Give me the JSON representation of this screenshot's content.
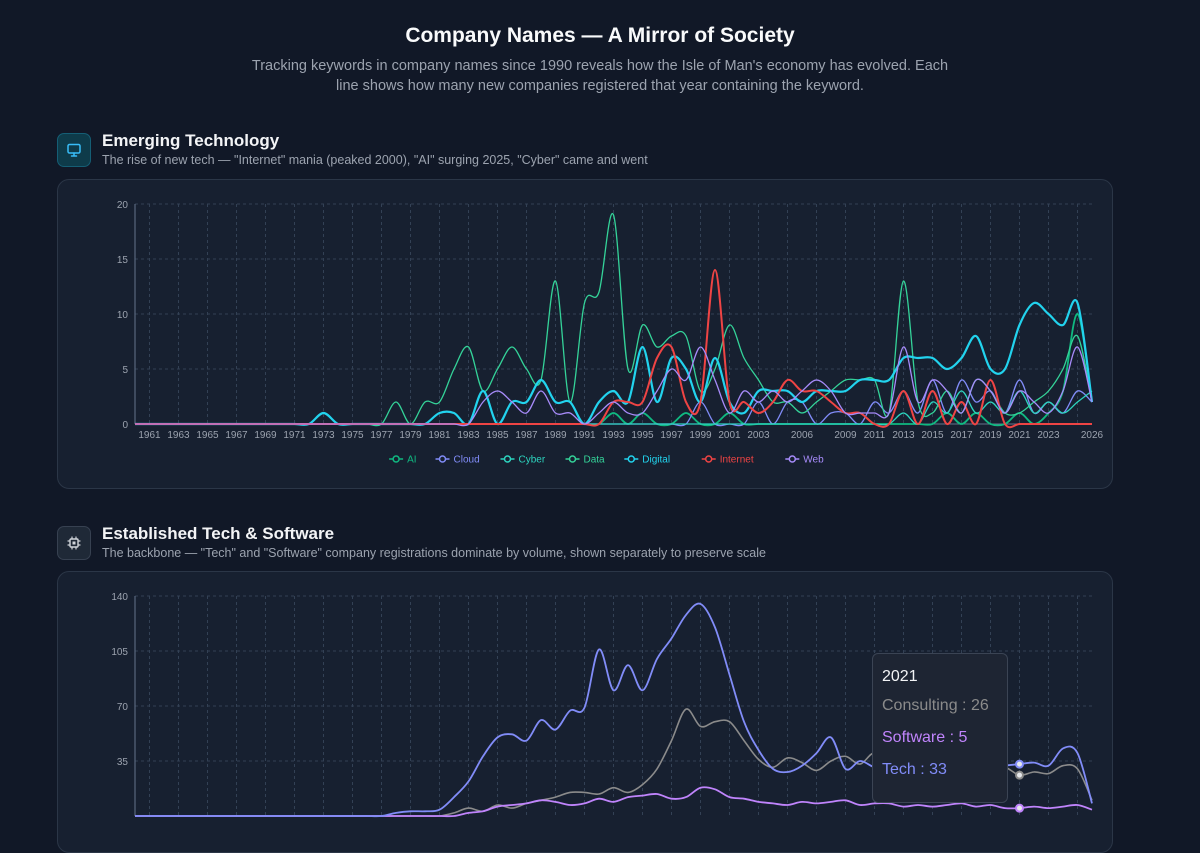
{
  "header": {
    "title": "Company Names — A Mirror of Society",
    "description": "Tracking keywords in company names since 1990 reveals how the Isle of Man's economy has evolved. Each line shows how many new companies registered that year containing the keyword."
  },
  "sections": [
    {
      "title": "Emerging Technology",
      "subtitle": "The rise of new tech — \"Internet\" mania (peaked 2000), \"AI\" surging 2025, \"Cyber\" came and went",
      "icon": "monitor-icon"
    },
    {
      "title": "Established Tech & Software",
      "subtitle": "The backbone — \"Tech\" and \"Software\" company registrations dominate by volume, shown separately to preserve scale",
      "icon": "chip-icon"
    }
  ],
  "tooltip": {
    "year": "2021",
    "rows": [
      {
        "label": "Consulting : 26",
        "color": "#8b8b8b"
      },
      {
        "label": "Software : 5",
        "color": "#c084fc"
      },
      {
        "label": "Tech : 33",
        "color": "#818cf8"
      }
    ]
  },
  "chart_data": [
    {
      "type": "line",
      "ylim": [
        0,
        20
      ],
      "yticks": [
        0,
        5,
        10,
        15,
        20
      ],
      "x": [
        1960,
        1961,
        1962,
        1963,
        1964,
        1965,
        1966,
        1967,
        1968,
        1969,
        1970,
        1971,
        1972,
        1973,
        1974,
        1975,
        1976,
        1977,
        1978,
        1979,
        1980,
        1981,
        1982,
        1983,
        1984,
        1985,
        1986,
        1987,
        1988,
        1989,
        1990,
        1991,
        1992,
        1993,
        1994,
        1995,
        1996,
        1997,
        1998,
        1999,
        2000,
        2001,
        2002,
        2003,
        2004,
        2005,
        2006,
        2007,
        2008,
        2009,
        2010,
        2011,
        2012,
        2013,
        2014,
        2015,
        2016,
        2017,
        2018,
        2019,
        2020,
        2021,
        2022,
        2023,
        2024,
        2025,
        2026
      ],
      "xticks": [
        "1961",
        "1963",
        "1965",
        "1967",
        "1969",
        "1971",
        "1973",
        "1975",
        "1977",
        "1979",
        "1981",
        "1983",
        "1985",
        "1987",
        "1989",
        "1991",
        "1993",
        "1995",
        "1997",
        "1999",
        "2001",
        "2003",
        "2006",
        "2009",
        "2011",
        "2013",
        "2015",
        "2017",
        "2019",
        "2021",
        "2023",
        "2026"
      ],
      "grid": true,
      "legend_position": "bottom",
      "series": [
        {
          "name": "AI",
          "color": "#10b981",
          "values": [
            0,
            0,
            0,
            0,
            0,
            0,
            0,
            0,
            0,
            0,
            0,
            0,
            0,
            0,
            0,
            0,
            0,
            0,
            0,
            0,
            0,
            0,
            0,
            0,
            0,
            0,
            0,
            0,
            0,
            0,
            0,
            0,
            0,
            1,
            0,
            1,
            0,
            0,
            1,
            0,
            0,
            1,
            0,
            0,
            0,
            0,
            0,
            0,
            0,
            0,
            0,
            0,
            0,
            0,
            0,
            0,
            1,
            0,
            1,
            0,
            0,
            1,
            0,
            1,
            3,
            10,
            2
          ]
        },
        {
          "name": "Cloud",
          "color": "#818cf8",
          "values": [
            0,
            0,
            0,
            0,
            0,
            0,
            0,
            0,
            0,
            0,
            0,
            0,
            0,
            0,
            0,
            0,
            0,
            0,
            0,
            0,
            0,
            0,
            0,
            0,
            0,
            0,
            0,
            0,
            0,
            0,
            0,
            0,
            0,
            0,
            0,
            0,
            0,
            0,
            0,
            2,
            0,
            0,
            0,
            2,
            0,
            2,
            2,
            0,
            1,
            1,
            0,
            2,
            1,
            3,
            1,
            4,
            1,
            4,
            2,
            3,
            1,
            4,
            1,
            2,
            1,
            3,
            2
          ]
        },
        {
          "name": "Cyber",
          "color": "#2dd4bf",
          "values": [
            0,
            0,
            0,
            0,
            0,
            0,
            0,
            0,
            0,
            0,
            0,
            0,
            0,
            0,
            0,
            0,
            0,
            0,
            0,
            0,
            0,
            0,
            0,
            0,
            0,
            0,
            0,
            0,
            0,
            0,
            0,
            0,
            0,
            0,
            0,
            0,
            0,
            0,
            0,
            0,
            0,
            0,
            0,
            0,
            0,
            0,
            0,
            0,
            0,
            0,
            0,
            0,
            0,
            1,
            0,
            2,
            1,
            3,
            1,
            2,
            1,
            3,
            1,
            2,
            1,
            2,
            3
          ]
        },
        {
          "name": "Data",
          "color": "#34d399",
          "values": [
            0,
            0,
            0,
            0,
            0,
            0,
            0,
            0,
            0,
            0,
            0,
            0,
            0,
            0,
            0,
            0,
            0,
            0,
            2,
            0,
            2,
            2,
            5,
            7,
            3,
            5,
            7,
            5,
            4,
            13,
            2,
            11,
            12,
            19,
            5,
            9,
            7,
            8,
            8,
            3,
            5,
            9,
            6,
            4,
            2,
            2,
            1,
            2,
            3,
            4,
            4,
            4,
            1,
            13,
            2,
            1,
            3,
            1,
            4,
            3,
            1,
            1,
            2,
            3,
            5,
            8,
            2
          ]
        },
        {
          "name": "Digital",
          "color": "#22d3ee",
          "values": [
            0,
            0,
            0,
            0,
            0,
            0,
            0,
            0,
            0,
            0,
            0,
            0,
            0,
            1,
            0,
            0,
            0,
            0,
            0,
            0,
            0,
            1,
            1,
            0,
            3,
            0,
            2,
            2,
            4,
            2,
            2,
            0,
            2,
            3,
            2,
            7,
            2,
            6,
            5,
            2,
            6,
            2,
            1,
            3,
            3,
            3,
            2,
            3,
            3,
            3,
            4,
            4,
            4,
            6,
            6,
            6,
            5,
            6,
            8,
            5,
            5,
            9,
            11,
            10,
            9,
            11,
            2
          ]
        },
        {
          "name": "Internet",
          "color": "#ef4444",
          "values": [
            0,
            0,
            0,
            0,
            0,
            0,
            0,
            0,
            0,
            0,
            0,
            0,
            0,
            0,
            0,
            0,
            0,
            0,
            0,
            0,
            0,
            0,
            0,
            0,
            0,
            0,
            0,
            0,
            0,
            0,
            0,
            0,
            0,
            2,
            2,
            2,
            6,
            7,
            2,
            2,
            14,
            2,
            2,
            1,
            2,
            4,
            3,
            3,
            2,
            1,
            1,
            0,
            0,
            3,
            0,
            3,
            0,
            2,
            0,
            4,
            0,
            0,
            0,
            0,
            0,
            0,
            0
          ]
        },
        {
          "name": "Web",
          "color": "#a78bfa",
          "values": [
            0,
            0,
            0,
            0,
            0,
            0,
            0,
            0,
            0,
            0,
            0,
            0,
            0,
            0,
            0,
            0,
            0,
            0,
            0,
            0,
            0,
            0,
            0,
            0,
            2,
            3,
            2,
            1,
            3,
            1,
            1,
            0,
            1,
            2,
            1,
            1,
            3,
            5,
            4,
            7,
            4,
            1,
            3,
            2,
            3,
            2,
            3,
            4,
            3,
            1,
            1,
            1,
            1,
            7,
            2,
            4,
            3,
            1,
            4,
            3,
            1,
            3,
            2,
            1,
            3,
            7,
            2
          ]
        }
      ]
    },
    {
      "type": "line",
      "ylim": [
        0,
        140
      ],
      "yticks": [
        35,
        70,
        105,
        140
      ],
      "x": [
        1960,
        1961,
        1962,
        1963,
        1964,
        1965,
        1966,
        1967,
        1968,
        1969,
        1970,
        1971,
        1972,
        1973,
        1974,
        1975,
        1976,
        1977,
        1978,
        1979,
        1980,
        1981,
        1982,
        1983,
        1984,
        1985,
        1986,
        1987,
        1988,
        1989,
        1990,
        1991,
        1992,
        1993,
        1994,
        1995,
        1996,
        1997,
        1998,
        1999,
        2000,
        2001,
        2002,
        2003,
        2004,
        2005,
        2006,
        2007,
        2008,
        2009,
        2010,
        2011,
        2012,
        2013,
        2014,
        2015,
        2016,
        2017,
        2018,
        2019,
        2020,
        2021,
        2022,
        2023,
        2024,
        2025,
        2026
      ],
      "grid": true,
      "series": [
        {
          "name": "Consulting",
          "color": "#8b8b8b",
          "values": [
            0,
            0,
            0,
            0,
            0,
            0,
            0,
            0,
            0,
            0,
            0,
            0,
            0,
            0,
            0,
            0,
            0,
            0,
            0,
            0,
            0,
            0,
            2,
            5,
            3,
            7,
            5,
            8,
            10,
            12,
            15,
            15,
            14,
            18,
            15,
            20,
            30,
            48,
            68,
            57,
            60,
            60,
            48,
            36,
            31,
            37,
            34,
            29,
            35,
            38,
            33,
            40,
            30,
            28,
            44,
            30,
            27,
            32,
            28,
            30,
            31,
            26,
            28,
            27,
            32,
            30,
            10
          ]
        },
        {
          "name": "Software",
          "color": "#c084fc",
          "values": [
            0,
            0,
            0,
            0,
            0,
            0,
            0,
            0,
            0,
            0,
            0,
            0,
            0,
            0,
            0,
            0,
            0,
            0,
            0,
            0,
            0,
            0,
            0,
            2,
            3,
            6,
            7,
            8,
            10,
            9,
            7,
            8,
            11,
            9,
            12,
            13,
            14,
            11,
            12,
            18,
            17,
            12,
            11,
            9,
            8,
            7,
            9,
            8,
            9,
            10,
            7,
            8,
            8,
            6,
            7,
            6,
            7,
            8,
            6,
            7,
            5,
            5,
            6,
            5,
            6,
            7,
            4
          ]
        },
        {
          "name": "Tech",
          "color": "#818cf8",
          "values": [
            0,
            0,
            0,
            0,
            0,
            0,
            0,
            0,
            0,
            0,
            0,
            0,
            0,
            0,
            0,
            0,
            0,
            0,
            2,
            3,
            3,
            4,
            12,
            22,
            38,
            50,
            52,
            48,
            61,
            55,
            67,
            69,
            106,
            80,
            96,
            80,
            100,
            113,
            128,
            135,
            120,
            90,
            60,
            42,
            30,
            28,
            32,
            40,
            50,
            30,
            35,
            31,
            30,
            32,
            33,
            30,
            28,
            32,
            29,
            30,
            32,
            33,
            34,
            32,
            43,
            40,
            8
          ]
        }
      ]
    }
  ]
}
